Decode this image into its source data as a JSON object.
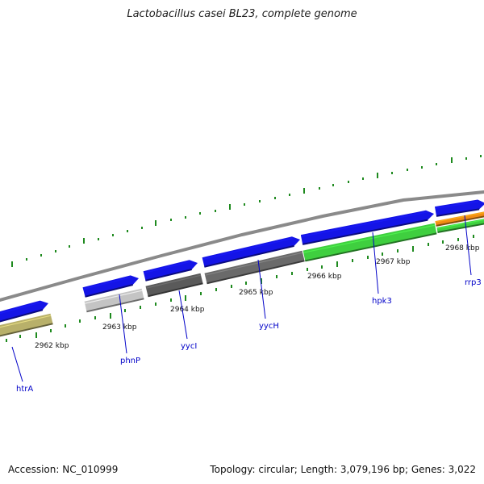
{
  "title": "Lactobacillus casei BL23, complete genome",
  "accession": "Accession: NC_010999",
  "topology": "Topology: circular; Length: 3,079,196 bp; Genes: 3,022",
  "colors": {
    "backbone": "#8a8a8a",
    "forward_gene": "#1414e6",
    "tick": "#1e8a1e",
    "gene_label": "#0000c8"
  },
  "kbp_labels": [
    "2962 kbp",
    "2963 kbp",
    "2964 kbp",
    "2965 kbp",
    "2966 kbp",
    "2967 kbp",
    "2968 kbp"
  ],
  "gene_labels": [
    "htrA",
    "phnP",
    "yycI",
    "yycH",
    "hpk3",
    "rrp3"
  ],
  "feature_colors": [
    "#b8b06a",
    "#c4c4c4",
    "#5a5a5a",
    "#6a6a6a",
    "#3fcf3f",
    "#f08c14",
    "#3fcf3f"
  ]
}
